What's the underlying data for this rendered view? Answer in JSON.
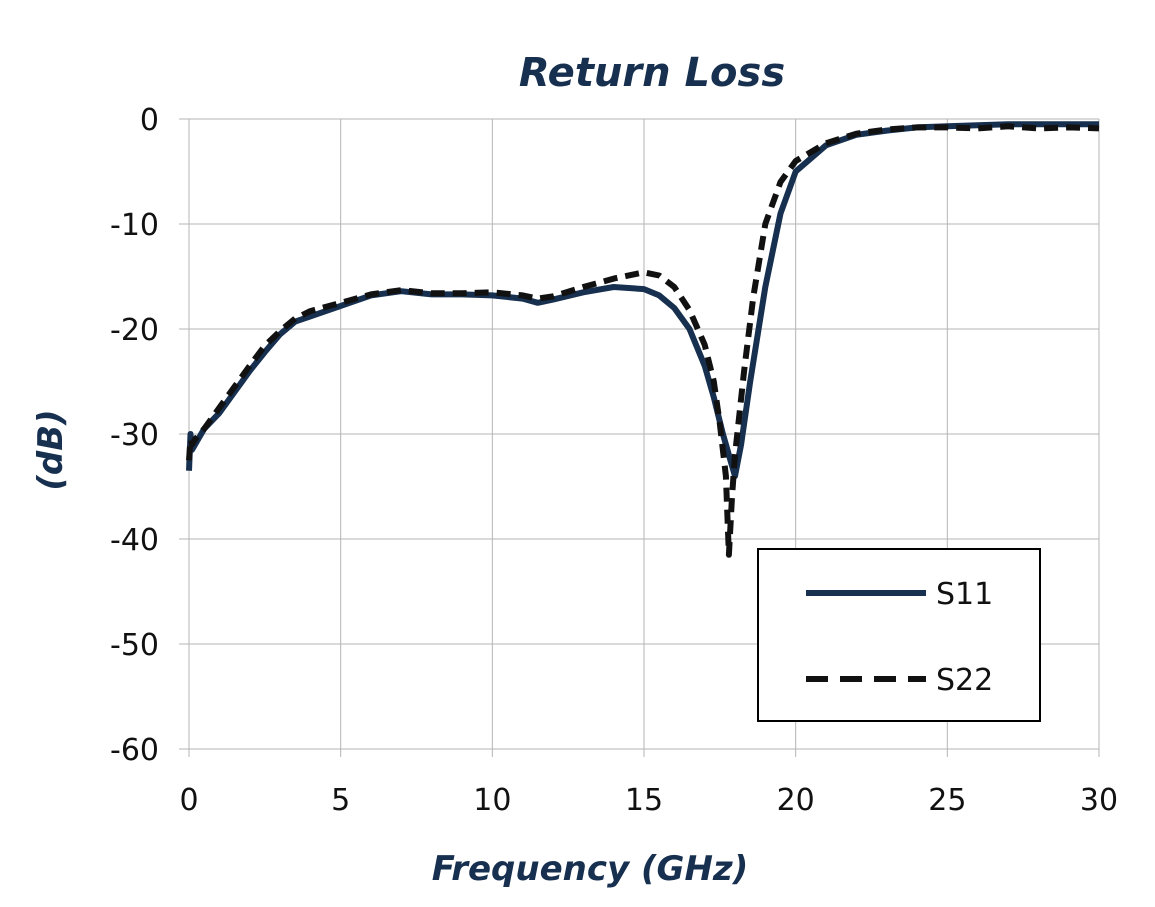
{
  "chart_data": {
    "type": "line",
    "title": "Return Loss",
    "xlabel": "Frequency (GHz)",
    "ylabel": "(dB)",
    "xlim": [
      0,
      30
    ],
    "ylim": [
      -60,
      0
    ],
    "xticks": [
      0,
      5,
      10,
      15,
      20,
      25,
      30
    ],
    "yticks": [
      0,
      -10,
      -20,
      -30,
      -40,
      -50,
      -60
    ],
    "xtick_labels": [
      "0",
      "5",
      "10",
      "15",
      "20",
      "25",
      "30"
    ],
    "ytick_labels": [
      "0",
      "-10",
      "-20",
      "-30",
      "-40",
      "-50",
      "-60"
    ],
    "grid": true,
    "legend_position": "bottom-right",
    "series": [
      {
        "name": "S11",
        "color": "#17304f",
        "style": "solid",
        "x": [
          0,
          0.05,
          0.1,
          0.2,
          0.5,
          1,
          1.5,
          2,
          2.5,
          3,
          3.5,
          4,
          5,
          6,
          7,
          8,
          9,
          10,
          11,
          11.5,
          12,
          13,
          14,
          15,
          15.5,
          16,
          16.5,
          17,
          17.3,
          17.6,
          17.8,
          18.0,
          18.2,
          18.5,
          19,
          19.5,
          20,
          21,
          22,
          23,
          24,
          25,
          26,
          27,
          28,
          29,
          30
        ],
        "y": [
          -33.5,
          -30,
          -31.5,
          -31,
          -29.5,
          -28,
          -26,
          -24,
          -22.2,
          -20.5,
          -19.3,
          -18.8,
          -17.8,
          -16.8,
          -16.4,
          -16.7,
          -16.7,
          -16.8,
          -17.1,
          -17.5,
          -17.2,
          -16.5,
          -16,
          -16.2,
          -16.8,
          -18,
          -20,
          -23.5,
          -26.5,
          -30,
          -32,
          -34,
          -31,
          -25,
          -16,
          -9,
          -5,
          -2.5,
          -1.5,
          -1.1,
          -0.8,
          -0.7,
          -0.6,
          -0.5,
          -0.5,
          -0.5,
          -0.5
        ]
      },
      {
        "name": "S22",
        "color": "#111111",
        "style": "dashed",
        "x": [
          0,
          0.05,
          0.1,
          0.2,
          0.5,
          1,
          1.5,
          2,
          2.5,
          3,
          3.5,
          4,
          5,
          6,
          7,
          8,
          9,
          10,
          11,
          11.5,
          12,
          13,
          14,
          15,
          15.5,
          16,
          16.5,
          17,
          17.3,
          17.5,
          17.7,
          17.8,
          17.9,
          18.0,
          18.3,
          18.6,
          19,
          19.5,
          20,
          21,
          22,
          23,
          24,
          25,
          26,
          27,
          28,
          29,
          30
        ],
        "y": [
          -32.5,
          -30.5,
          -31,
          -30.5,
          -29.5,
          -27.5,
          -25.5,
          -23.5,
          -21.6,
          -20.2,
          -19,
          -18.3,
          -17.5,
          -16.7,
          -16.3,
          -16.6,
          -16.6,
          -16.5,
          -16.8,
          -17.1,
          -16.9,
          -16,
          -15.2,
          -14.6,
          -14.9,
          -16,
          -18.2,
          -21.5,
          -25,
          -29,
          -34,
          -41.5,
          -36,
          -32,
          -24,
          -17,
          -10,
          -6,
          -4,
          -2.3,
          -1.4,
          -1,
          -0.8,
          -0.8,
          -0.9,
          -0.7,
          -0.9,
          -0.8,
          -0.9
        ]
      }
    ]
  }
}
